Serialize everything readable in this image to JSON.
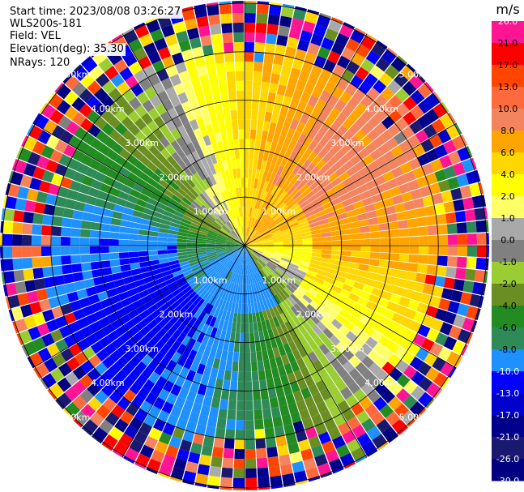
{
  "header": {
    "start_time": "Start time: 2023/08/08 03:26:27",
    "instrument": "WLS200s-181",
    "field": "Field: VEL",
    "elevation": "Elevation(deg): 35.30",
    "nrays": "NRays: 120"
  },
  "colorbar": {
    "unit": "m/s",
    "ticks": [
      "26.0",
      "21.0",
      "17.0",
      "13.0",
      "10.0",
      "8.0",
      "6.0",
      "4.0",
      "2.0",
      "1.0",
      "0.0",
      "-1.0",
      "-2.0",
      "-4.0",
      "-6.0",
      "-8.0",
      "-10.0",
      "-13.0",
      "-17.0",
      "-21.0",
      "-26.0",
      "-30.0"
    ],
    "colors": [
      "#ff1493",
      "#ff0000",
      "#ff4500",
      "#ff6a3d",
      "#f4845f",
      "#ffa500",
      "#ffd700",
      "#ffff00",
      "#ffff66",
      "#a9a9a9",
      "#808080",
      "#9acd32",
      "#6b8e23",
      "#228b22",
      "#2e8b57",
      "#1e90ff",
      "#0000ff",
      "#0000cd",
      "#00008b",
      "#191970",
      "#000080"
    ]
  },
  "chart_data": {
    "type": "heatmap",
    "projection": "PPI (polar)",
    "n_rays": 120,
    "range_rings_km": [
      1,
      2,
      3,
      4,
      5
    ],
    "range_ring_labels": [
      "1.00km",
      "2.00km",
      "3.00km",
      "4.00km",
      "5.00km"
    ],
    "azimuth_spokes_deg": [
      0,
      30,
      60,
      90,
      120,
      150,
      180,
      210,
      240,
      270,
      300,
      330
    ],
    "value_range": [
      -30,
      26
    ],
    "dominant_pattern": {
      "northeast": "positive (orange/red, ~4 to 13 m/s)",
      "southwest": "negative (green, ~-2 to -8 m/s)",
      "center_south": "blue (~-8 to -10 m/s)",
      "near_zero_band": "gray, from northwest to southeast",
      "outer_rings": "noisy multicolor"
    }
  }
}
